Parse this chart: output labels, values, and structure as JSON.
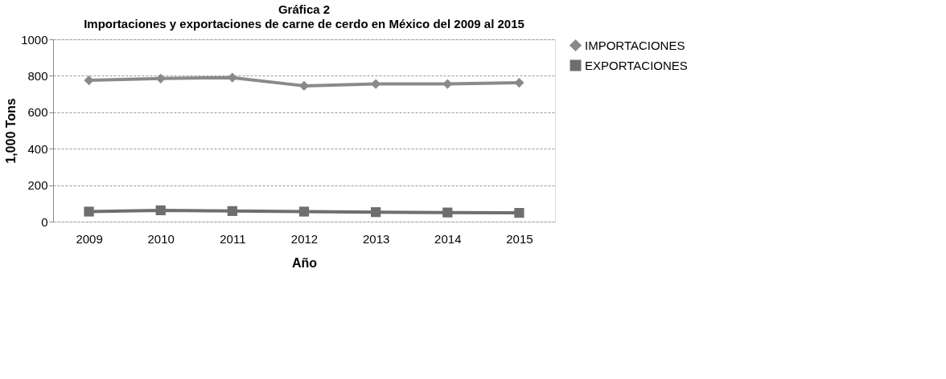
{
  "chart_data": {
    "type": "line",
    "title": "Gráfica  2",
    "subtitle": "Importaciones y exportaciones de carne de cerdo en México del 2009 al 2015",
    "xlabel": "Año",
    "ylabel": "1,000 Tons",
    "categories": [
      "2009",
      "2010",
      "2011",
      "2012",
      "2013",
      "2014",
      "2015"
    ],
    "series": [
      {
        "name": "IMPORTACIONES",
        "color": "#8a8a8a",
        "marker": "diamond",
        "values": [
          775,
          785,
          790,
          745,
          755,
          755,
          762
        ]
      },
      {
        "name": "EXPORTACIONES",
        "color": "#6e6e6e",
        "marker": "square",
        "values": [
          55,
          62,
          58,
          55,
          52,
          50,
          48
        ]
      }
    ],
    "ylim": [
      0,
      1000
    ],
    "yticks": [
      0,
      200,
      400,
      600,
      800,
      1000
    ],
    "grid": "y",
    "legend": "right"
  }
}
